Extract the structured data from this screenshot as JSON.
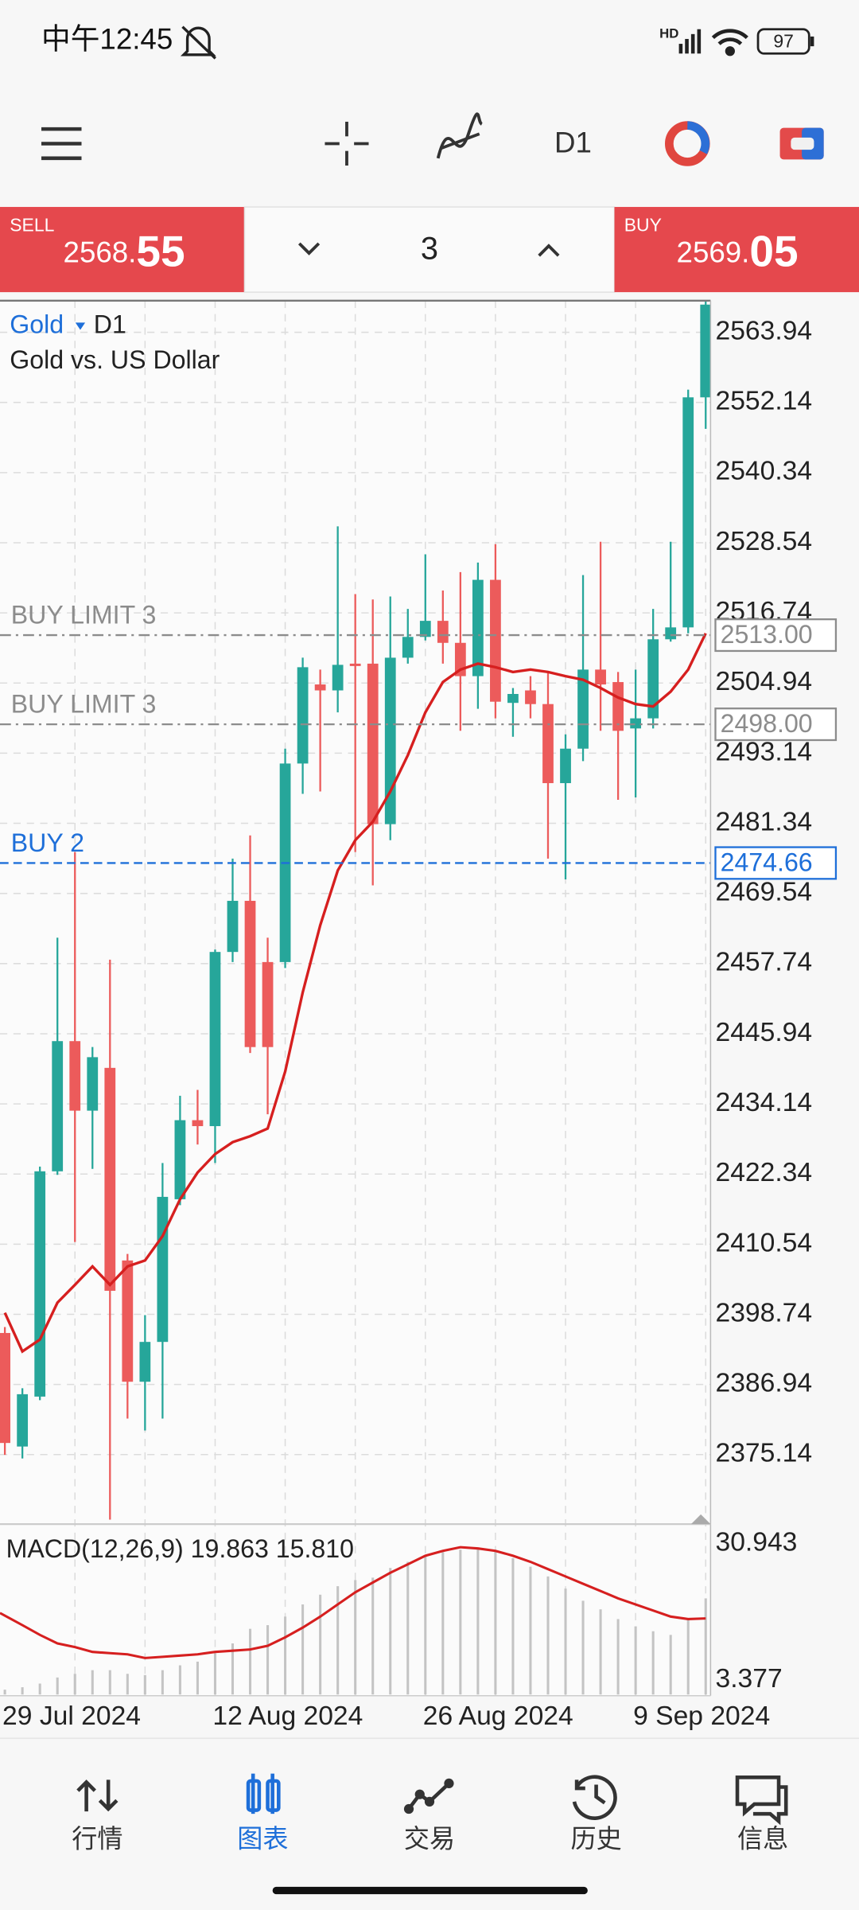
{
  "status_bar": {
    "time": "中午12:45",
    "network": "HD",
    "battery": "97"
  },
  "toolbar": {
    "timeframe": "D1"
  },
  "trade_panel": {
    "sell_label": "SELL",
    "sell_price_main": "2568.",
    "sell_price_big": "55",
    "volume": "3",
    "buy_label": "BUY",
    "buy_price_main": "2569.",
    "buy_price_big": "05"
  },
  "chart_data": [
    {
      "type": "candlestick",
      "symbol": "Gold",
      "timeframe": "D1",
      "subtitle": "Gold vs. US Dollar",
      "categories": [
        "29 Jul 2024",
        null,
        null,
        null,
        null,
        null,
        null,
        null,
        null,
        null,
        null,
        null,
        "12 Aug 2024",
        null,
        null,
        null,
        null,
        null,
        null,
        null,
        null,
        null,
        null,
        null,
        "26 Aug 2024",
        null,
        null,
        null,
        null,
        null,
        null,
        null,
        null,
        null,
        null,
        null,
        "9 Sep 2024",
        null,
        null,
        null,
        null
      ],
      "open": [
        2395.6,
        2376.5,
        2384.9,
        2422.8,
        2444.7,
        2433.0,
        2440.2,
        2407.8,
        2387.4,
        2394.1,
        2418.1,
        2431.4,
        2430.4,
        2459.7,
        2468.3,
        2458.0,
        2458.0,
        2491.4,
        2504.7,
        2503.7,
        2508.2,
        2508.2,
        2481.2,
        2509.2,
        2512.7,
        2515.4,
        2511.7,
        2506.1,
        2522.3,
        2501.6,
        2503.7,
        2501.4,
        2488.1,
        2493.9,
        2507.2,
        2505.1,
        2497.3,
        2499.0,
        2512.3,
        2514.3,
        2553.0
      ],
      "high": [
        2396.6,
        2386.3,
        2423.6,
        2462.1,
        2476.5,
        2443.7,
        2458.4,
        2408.9,
        2398.6,
        2424.2,
        2435.5,
        2436.5,
        2460.1,
        2475.4,
        2479.3,
        2462.1,
        2493.9,
        2509.2,
        2507.2,
        2531.3,
        2519.9,
        2519.0,
        2519.5,
        2517.4,
        2526.6,
        2520.5,
        2523.6,
        2525.2,
        2528.3,
        2504.1,
        2506.1,
        2506.6,
        2496.3,
        2523.1,
        2528.7,
        2506.8,
        2507.2,
        2517.4,
        2528.7,
        2554.3,
        2569.1
      ],
      "low": [
        2375.1,
        2374.5,
        2384.3,
        2422.2,
        2410.9,
        2423.2,
        2364.2,
        2381.2,
        2379.2,
        2381.2,
        2417.1,
        2427.3,
        2424.2,
        2458.0,
        2442.7,
        2432.4,
        2457.0,
        2486.3,
        2486.7,
        2500.0,
        2476.5,
        2470.9,
        2478.5,
        2508.2,
        2512.1,
        2508.2,
        2496.9,
        2500.6,
        2499.0,
        2495.9,
        2499.0,
        2475.4,
        2471.9,
        2491.8,
        2496.9,
        2485.3,
        2485.7,
        2497.3,
        2511.9,
        2513.3,
        2547.7
      ],
      "close": [
        2377.1,
        2385.3,
        2422.8,
        2444.7,
        2433.0,
        2442.0,
        2402.7,
        2387.4,
        2394.1,
        2418.5,
        2431.4,
        2430.4,
        2459.7,
        2468.3,
        2443.7,
        2443.7,
        2491.4,
        2507.6,
        2503.7,
        2508.0,
        2507.8,
        2481.2,
        2509.2,
        2512.7,
        2515.4,
        2511.7,
        2506.1,
        2522.3,
        2501.8,
        2503.1,
        2501.4,
        2488.1,
        2493.9,
        2507.2,
        2504.7,
        2496.9,
        2499.0,
        2512.3,
        2514.3,
        2553.0,
        2568.6
      ],
      "ma_values": [
        2399.0,
        2392.5,
        2394.5,
        2400.7,
        2403.7,
        2406.8,
        2403.7,
        2406.8,
        2407.8,
        2411.9,
        2418.1,
        2422.6,
        2425.7,
        2427.7,
        2428.7,
        2430.0,
        2439.6,
        2452.9,
        2464.2,
        2473.4,
        2478.5,
        2481.6,
        2486.7,
        2492.8,
        2500.0,
        2505.1,
        2507.2,
        2508.2,
        2507.6,
        2506.8,
        2507.2,
        2506.8,
        2506.1,
        2505.5,
        2504.1,
        2502.5,
        2501.4,
        2501.0,
        2503.5,
        2507.2,
        2513.3
      ],
      "ma_color": "#d61f1f",
      "up_color": "#26a69a",
      "down_color": "#ec5b5b",
      "ylim": [
        2363.86,
        2569.26
      ],
      "yticks": [
        2563.94,
        2552.14,
        2540.34,
        2528.54,
        2516.74,
        2504.94,
        2493.14,
        2481.34,
        2469.54,
        2457.74,
        2445.94,
        2434.14,
        2422.34,
        2410.54,
        2398.74,
        2386.94,
        2375.14
      ],
      "grid": true,
      "order_lines": [
        {
          "label": "BUY LIMIT 3",
          "price": 2513.0,
          "price_label": "2513.00",
          "color": "#8c8c8c",
          "style": "dashdot"
        },
        {
          "label": "BUY LIMIT 3",
          "price": 2498.0,
          "price_label": "2498.00",
          "color": "#8c8c8c",
          "style": "dashdot"
        },
        {
          "label": "BUY 2",
          "price": 2474.66,
          "price_label": "2474.66",
          "color": "#1e6fd9",
          "style": "dashed"
        }
      ]
    },
    {
      "type": "macd",
      "title": "MACD(12,26,9) 19.863 15.810",
      "series": [
        {
          "kind": "bar",
          "color": "#c4c4c4",
          "values": [
            1.41,
            1.9,
            2.64,
            3.87,
            4.61,
            5.35,
            5.35,
            4.61,
            4.36,
            5.35,
            6.33,
            7.07,
            8.79,
            10.76,
            13.71,
            14.45,
            16.18,
            18.64,
            20.61,
            22.33,
            23.56,
            24.05,
            26.02,
            27.25,
            28.48,
            29.22,
            29.71,
            29.96,
            29.47,
            27.99,
            26.27,
            24.3,
            21.84,
            19.38,
            17.65,
            15.68,
            14.21,
            13.22,
            12.48,
            15.68,
            19.863
          ]
        },
        {
          "kind": "line",
          "color": "#d61f1f",
          "values": [
            16.91,
            14.45,
            12.48,
            10.76,
            10.02,
            9.04,
            8.79,
            8.55,
            7.81,
            8.05,
            8.3,
            8.55,
            9.04,
            9.28,
            9.53,
            10.27,
            11.99,
            13.96,
            16.18,
            18.64,
            21.1,
            23.07,
            25.04,
            26.76,
            28.48,
            29.47,
            30.21,
            29.96,
            29.47,
            28.48,
            27.25,
            25.77,
            24.3,
            22.82,
            21.35,
            19.87,
            18.64,
            17.41,
            16.18,
            15.68,
            15.81
          ]
        }
      ],
      "ylim": [
        0.424,
        34.14
      ],
      "yticks": [
        30.943,
        3.377
      ]
    }
  ],
  "nav": {
    "items": [
      "行情",
      "图表",
      "交易",
      "历史",
      "信息"
    ],
    "active": 1
  }
}
